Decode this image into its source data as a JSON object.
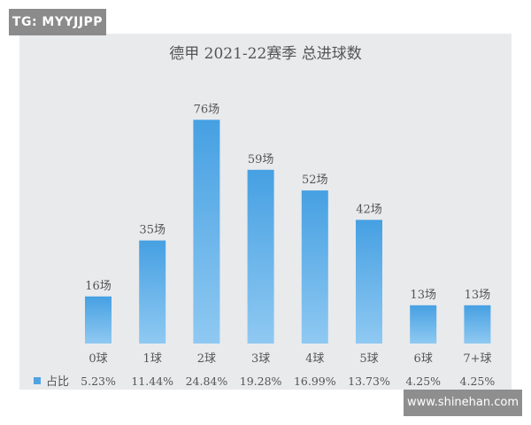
{
  "watermarks": {
    "tag": "TG: MYYJJPP",
    "site": "www.shinehan.com"
  },
  "chart_data": {
    "type": "bar",
    "title": "德甲 2021-22赛季 总进球数",
    "categories": [
      "0球",
      "1球",
      "2球",
      "3球",
      "4球",
      "5球",
      "6球",
      "7+球"
    ],
    "series": [
      {
        "values": [
          16,
          35,
          76,
          59,
          52,
          42,
          13,
          13
        ],
        "data_labels": [
          "16场",
          "35场",
          "76场",
          "59场",
          "52场",
          "42场",
          "13场",
          "13场"
        ]
      }
    ],
    "table_row": {
      "legend_label": "占比",
      "values": [
        "5.23%",
        "11.44%",
        "24.84%",
        "19.28%",
        "16.99%",
        "13.73%",
        "4.25%",
        "4.25%"
      ]
    },
    "ylim": [
      0,
      80
    ],
    "grid": false,
    "colors": {
      "bar": "#4fa3e3",
      "bar_light": "#8ec8f2",
      "background": "#e9eaec",
      "text": "#555555"
    }
  }
}
